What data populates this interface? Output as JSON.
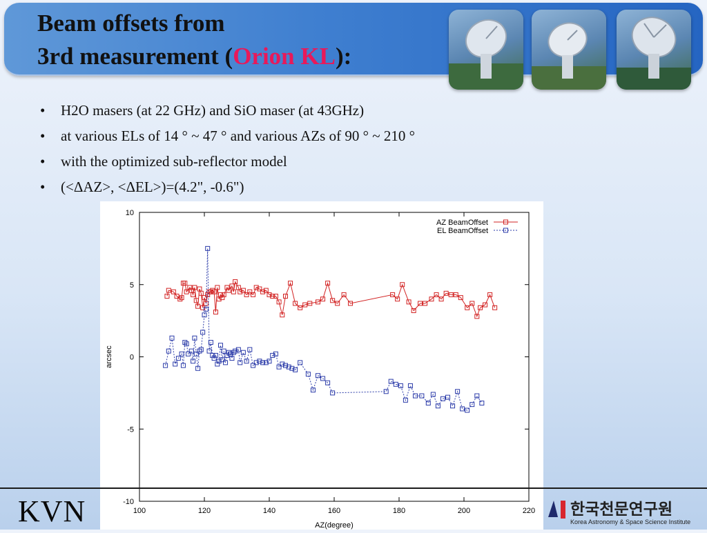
{
  "slide": {
    "title_line1": "Beam offsets from",
    "title_line2_prefix": "3rd measurement (",
    "title_highlight": "Orion KL",
    "title_line2_suffix": "):",
    "highlight_color": "#e8195a",
    "bullets": [
      "H2O masers (at 22 GHz) and SiO maser (at 43GHz)",
      "at various ELs of 14 ° ~ 47 ° and various AZs of 90 ° ~ 210 °",
      "with the optimized sub-reflector model",
      "(<ΔAZ>, <ΔEL>)=(4.2\", -0.6\")"
    ],
    "footer_left": "KVN",
    "logo_korean": "한국천문연구원",
    "logo_english": "Korea Astronomy & Space Science Institute"
  },
  "chart_data": {
    "type": "line",
    "xlabel": "AZ(degree)",
    "ylabel": "arcsec",
    "xlim": [
      100,
      220
    ],
    "ylim": [
      -10,
      10
    ],
    "xticks": [
      100,
      120,
      140,
      160,
      180,
      200,
      220
    ],
    "yticks": [
      -10,
      -5,
      0,
      5,
      10
    ],
    "grid": false,
    "legend_position": "top-right",
    "series": [
      {
        "name": "AZ BeamOffset",
        "color": "#d22222",
        "style": "solid",
        "marker": "open-square",
        "points": [
          [
            108.5,
            4.2
          ],
          [
            109,
            4.6
          ],
          [
            110.5,
            4.5
          ],
          [
            111.5,
            4.2
          ],
          [
            112.5,
            4.0
          ],
          [
            113,
            4.1
          ],
          [
            113.5,
            5.1
          ],
          [
            114,
            5.1
          ],
          [
            114.5,
            4.5
          ],
          [
            115.5,
            4.8
          ],
          [
            116,
            4.6
          ],
          [
            116.5,
            4.3
          ],
          [
            117,
            4.8
          ],
          [
            117.5,
            3.9
          ],
          [
            118,
            3.5
          ],
          [
            118.5,
            4.7
          ],
          [
            119,
            4.4
          ],
          [
            119.5,
            3.4
          ],
          [
            120,
            4.1
          ],
          [
            120.5,
            3.7
          ],
          [
            121,
            4.3
          ],
          [
            121.5,
            4.5
          ],
          [
            122,
            4.5
          ],
          [
            122.5,
            4.6
          ],
          [
            123,
            4.5
          ],
          [
            123.5,
            3.1
          ],
          [
            124,
            4.8
          ],
          [
            124.5,
            4.0
          ],
          [
            125,
            4.3
          ],
          [
            125.5,
            4.1
          ],
          [
            126,
            4.3
          ],
          [
            127,
            4.8
          ],
          [
            127.5,
            4.6
          ],
          [
            128.5,
            4.9
          ],
          [
            129,
            4.5
          ],
          [
            129.5,
            5.2
          ],
          [
            130.5,
            4.8
          ],
          [
            131,
            4.5
          ],
          [
            132,
            4.6
          ],
          [
            133,
            4.3
          ],
          [
            134,
            4.5
          ],
          [
            135,
            4.3
          ],
          [
            136,
            4.8
          ],
          [
            137,
            4.7
          ],
          [
            138,
            4.5
          ],
          [
            139,
            4.6
          ],
          [
            140,
            4.3
          ],
          [
            141,
            4.2
          ],
          [
            142,
            4.2
          ],
          [
            143,
            3.8
          ],
          [
            144,
            2.9
          ],
          [
            145,
            4.2
          ],
          [
            146.5,
            5.1
          ],
          [
            148,
            3.7
          ],
          [
            149.5,
            3.4
          ],
          [
            151,
            3.6
          ],
          [
            152.5,
            3.7
          ],
          [
            155,
            3.8
          ],
          [
            156.5,
            4.0
          ],
          [
            158,
            5.1
          ],
          [
            159.5,
            3.9
          ],
          [
            161,
            3.7
          ],
          [
            163,
            4.3
          ],
          [
            165,
            3.7
          ],
          [
            178,
            4.3
          ],
          [
            179.5,
            4.0
          ],
          [
            181,
            5.0
          ],
          [
            183,
            3.8
          ],
          [
            184.5,
            3.2
          ],
          [
            186.5,
            3.7
          ],
          [
            188,
            3.7
          ],
          [
            190,
            4.0
          ],
          [
            191.5,
            4.3
          ],
          [
            193,
            4.0
          ],
          [
            194.5,
            4.4
          ],
          [
            196,
            4.3
          ],
          [
            197.5,
            4.3
          ],
          [
            199,
            4.1
          ],
          [
            201,
            3.4
          ],
          [
            202.5,
            3.7
          ],
          [
            204,
            2.8
          ],
          [
            205,
            3.4
          ],
          [
            206.5,
            3.6
          ],
          [
            208,
            4.3
          ],
          [
            209.5,
            3.4
          ]
        ]
      },
      {
        "name": "EL BeamOffset",
        "color": "#2a3aa8",
        "style": "dashed",
        "marker": "open-square",
        "points": [
          [
            108,
            -0.6
          ],
          [
            109,
            0.4
          ],
          [
            110,
            1.3
          ],
          [
            111,
            -0.5
          ],
          [
            112,
            -0.1
          ],
          [
            113,
            0.2
          ],
          [
            113.5,
            -0.6
          ],
          [
            114,
            1.0
          ],
          [
            114.5,
            0.9
          ],
          [
            115,
            0.2
          ],
          [
            116,
            0.4
          ],
          [
            116.5,
            -0.3
          ],
          [
            117,
            1.3
          ],
          [
            117.5,
            0.2
          ],
          [
            118,
            -0.8
          ],
          [
            118.5,
            0.4
          ],
          [
            119,
            0.5
          ],
          [
            119.5,
            1.7
          ],
          [
            120,
            2.9
          ],
          [
            120.5,
            3.3
          ],
          [
            121,
            7.5
          ],
          [
            121.5,
            0.4
          ],
          [
            122,
            1.0
          ],
          [
            122.5,
            0.1
          ],
          [
            123,
            -0.1
          ],
          [
            123.5,
            0.1
          ],
          [
            124,
            -0.5
          ],
          [
            124.5,
            -0.3
          ],
          [
            125,
            0.8
          ],
          [
            125.5,
            -0.2
          ],
          [
            126,
            0.4
          ],
          [
            126.5,
            -0.4
          ],
          [
            127,
            0.1
          ],
          [
            127.5,
            0.3
          ],
          [
            128,
            0.2
          ],
          [
            128.5,
            -0.1
          ],
          [
            129,
            0.3
          ],
          [
            129.5,
            0.4
          ],
          [
            130.5,
            0.5
          ],
          [
            131,
            -0.4
          ],
          [
            132,
            0.3
          ],
          [
            133,
            -0.3
          ],
          [
            134,
            0.5
          ],
          [
            135,
            -0.6
          ],
          [
            136,
            -0.4
          ],
          [
            137,
            -0.3
          ],
          [
            138,
            -0.4
          ],
          [
            139,
            -0.4
          ],
          [
            140,
            -0.3
          ],
          [
            141,
            0.1
          ],
          [
            142,
            0.2
          ],
          [
            143,
            -0.7
          ],
          [
            144,
            -0.5
          ],
          [
            145,
            -0.6
          ],
          [
            146,
            -0.7
          ],
          [
            147,
            -0.8
          ],
          [
            148,
            -0.9
          ],
          [
            149.5,
            -0.4
          ],
          [
            152,
            -1.2
          ],
          [
            153.5,
            -2.3
          ],
          [
            155,
            -1.3
          ],
          [
            156.5,
            -1.5
          ],
          [
            158,
            -1.8
          ],
          [
            159.5,
            -2.5
          ],
          [
            176,
            -2.4
          ],
          [
            177.5,
            -1.7
          ],
          [
            179,
            -1.9
          ],
          [
            180.5,
            -2.0
          ],
          [
            182,
            -3.0
          ],
          [
            183.5,
            -2.0
          ],
          [
            185,
            -2.7
          ],
          [
            187,
            -2.7
          ],
          [
            189,
            -3.2
          ],
          [
            190.5,
            -2.6
          ],
          [
            192,
            -3.4
          ],
          [
            193.5,
            -2.9
          ],
          [
            195,
            -2.8
          ],
          [
            196.5,
            -3.4
          ],
          [
            198,
            -2.4
          ],
          [
            199.5,
            -3.6
          ],
          [
            201,
            -3.7
          ],
          [
            202.5,
            -3.3
          ],
          [
            204,
            -2.7
          ],
          [
            205.5,
            -3.2
          ]
        ]
      }
    ]
  }
}
